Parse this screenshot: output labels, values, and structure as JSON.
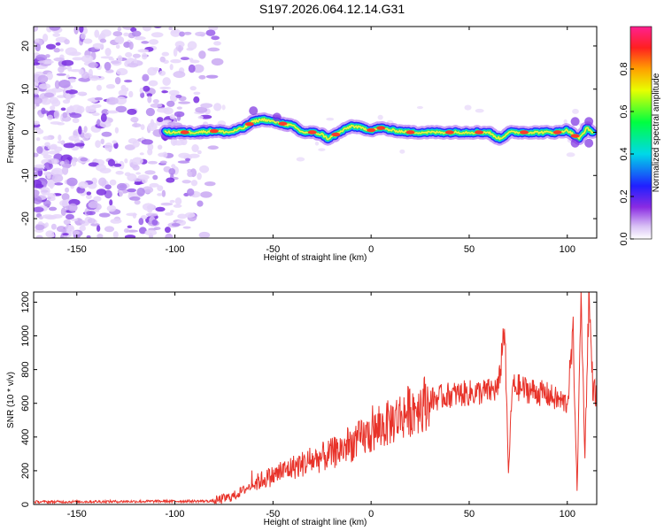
{
  "title": "S197.2026.064.12.14.G31",
  "chart_data": [
    {
      "type": "heatmap",
      "xlabel": "Height of straight line (km)",
      "ylabel": "Frequency (Hz)",
      "xlim": [
        -172,
        115
      ],
      "ylim": [
        -24.5,
        24.5
      ],
      "xticks": [
        -150,
        -100,
        -50,
        0,
        50,
        100
      ],
      "yticks": [
        -20,
        -10,
        0,
        10,
        20
      ],
      "colorbar": {
        "label": "Normalized spectral amplitude",
        "range": [
          0,
          1
        ],
        "ticks": [
          0.0,
          0.2,
          0.4,
          0.6,
          0.8
        ]
      },
      "ridge": {
        "x": [
          -105,
          -90,
          -80,
          -72,
          -65,
          -60,
          -55,
          -50,
          -45,
          -40,
          -35,
          -30,
          -25,
          -22,
          -18,
          -14,
          -10,
          -5,
          0,
          5,
          10,
          20,
          30,
          40,
          50,
          60,
          63,
          66,
          70,
          80,
          90,
          95,
          100,
          103,
          106,
          110,
          113
        ],
        "freq": [
          0,
          0,
          0.3,
          0,
          1,
          2.5,
          3,
          2.5,
          2,
          1.5,
          0,
          0,
          -0.5,
          -1.5,
          -0.5,
          0.5,
          1.5,
          1,
          0.5,
          1,
          0.5,
          0,
          0,
          0,
          0,
          0,
          -1,
          -1.5,
          0,
          0,
          0,
          0,
          0.5,
          -0.5,
          -1.5,
          1,
          0
        ]
      }
    },
    {
      "type": "line",
      "xlabel": "Height of straight line (km)",
      "ylabel": "SNR (10 * v/v)",
      "xlim": [
        -172,
        115
      ],
      "ylim": [
        0,
        1260
      ],
      "xticks": [
        -150,
        -100,
        -50,
        0,
        50,
        100
      ],
      "yticks": [
        0,
        200,
        400,
        600,
        800,
        1000,
        1200
      ],
      "series": [
        {
          "name": "SNR",
          "color": "#e8332a",
          "trend_x": [
            -172,
            -80,
            -70,
            -60,
            -55,
            -50,
            -40,
            -30,
            -20,
            -10,
            0,
            10,
            20,
            30,
            40,
            50,
            60,
            65,
            68,
            70,
            72,
            80,
            90,
            95,
            100,
            103,
            105,
            107,
            109,
            111,
            113,
            115
          ],
          "trend_y": [
            15,
            20,
            50,
            120,
            150,
            170,
            220,
            260,
            300,
            360,
            420,
            490,
            560,
            620,
            650,
            660,
            670,
            690,
            1080,
            180,
            700,
            680,
            650,
            620,
            600,
            1000,
            80,
            1230,
            300,
            1240,
            700,
            640
          ]
        }
      ]
    }
  ]
}
